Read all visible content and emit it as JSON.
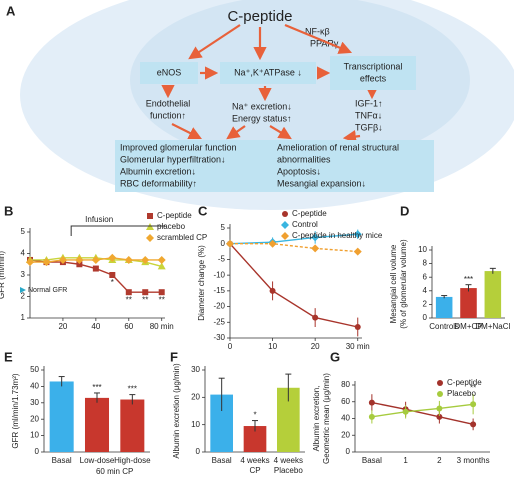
{
  "figure_a": {
    "label": "A",
    "hub": "C-peptide",
    "side_labels": [
      "NF-κβ",
      "PPARγ"
    ],
    "nodes": [
      {
        "label": [
          "eNOS"
        ]
      },
      {
        "label": [
          "Na⁺,K⁺ATPase ↓"
        ]
      },
      {
        "label": [
          "Transcriptional",
          "effects"
        ]
      }
    ],
    "effects": [
      [
        "Endothelial",
        "function↑"
      ],
      [
        "Na⁺ excretion↓",
        "Energy status↑"
      ],
      [
        "IGF-1↑",
        "TNFα↓",
        "TGFβ↓"
      ]
    ],
    "outcomes": [
      [
        "Improved glomerular function",
        "Glomerular hyperfiltration↓",
        "Albumin excretion↓",
        "RBC deformability↑"
      ],
      [
        "Amelioration of renal structural",
        "abnormalities",
        "Apoptosis↓",
        "Mesangial expansion↓"
      ]
    ]
  },
  "chart_data": [
    {
      "type": "line",
      "panel": "B",
      "ylabel": [
        "GFR (ml/min)"
      ],
      "x": [
        0,
        10,
        20,
        30,
        40,
        50,
        60,
        70,
        80
      ],
      "xlim": [
        0,
        82
      ],
      "xticks": [
        20,
        40,
        60,
        {
          "value": 80,
          "label": "80 min"
        }
      ],
      "ylim": [
        1,
        5
      ],
      "yticks": [
        1,
        2,
        3,
        4,
        5
      ],
      "series": [
        {
          "name": "C-peptide",
          "color": "#b03a2e",
          "marker": "square",
          "values": [
            3.7,
            3.6,
            3.6,
            3.5,
            3.3,
            3.0,
            2.2,
            2.2,
            2.2
          ]
        },
        {
          "name": "placebo",
          "color": "#c9d43a",
          "marker": "triangle",
          "values": [
            3.7,
            3.7,
            3.8,
            3.8,
            3.8,
            3.7,
            3.7,
            3.6,
            3.4
          ]
        },
        {
          "name": "scrambled CP",
          "color": "#f0a830",
          "marker": "diamond",
          "values": [
            3.6,
            3.6,
            3.7,
            3.7,
            3.7,
            3.8,
            3.7,
            3.7,
            3.7
          ]
        }
      ],
      "sig": [
        null,
        null,
        null,
        null,
        null,
        "*",
        "**",
        "**",
        "**"
      ],
      "infusion": {
        "label": "Infusion",
        "start": 25
      },
      "normal": {
        "label": "Normal GFR",
        "value": 2.3
      }
    },
    {
      "type": "line",
      "panel": "C",
      "ylabel": [
        "Diameter change (%)"
      ],
      "x": [
        0,
        10,
        20,
        30
      ],
      "xlim": [
        0,
        31
      ],
      "xticks": [
        0,
        10,
        20,
        {
          "value": 30,
          "label": "30 min"
        }
      ],
      "ylim": [
        -30,
        5
      ],
      "yticks": [
        -30,
        -25,
        -20,
        -15,
        -10,
        -5,
        0,
        5
      ],
      "series": [
        {
          "name": "C-peptide",
          "color": "#a8342b",
          "marker": "circle",
          "values": [
            0,
            -15,
            -23.5,
            -26.5
          ],
          "errors": [
            0,
            3,
            3,
            3
          ]
        },
        {
          "name": "Control",
          "color": "#3ab5e0",
          "marker": "diamond",
          "values": [
            0,
            0.5,
            2,
            3
          ],
          "errors": [
            0,
            1.5,
            2,
            1.5
          ]
        },
        {
          "name": "C-peptide in healthy mice",
          "color": "#f0a030",
          "marker": "diamond",
          "dashed": true,
          "values": [
            0,
            0,
            -1.5,
            -2.5
          ]
        }
      ]
    },
    {
      "type": "bar",
      "panel": "D",
      "ylabel": [
        "Mesangial cell volume",
        "(% of glomerular volume)"
      ],
      "categories": [
        [
          "Controls"
        ],
        [
          "DM+CP"
        ],
        [
          "DM+NaCl"
        ]
      ],
      "values": [
        3.1,
        4.4,
        6.9
      ],
      "errors": [
        0.2,
        0.5,
        0.4
      ],
      "colors": [
        "#3bb0ea",
        "#c8372d",
        "#b5cf3a"
      ],
      "ylim": [
        0,
        10
      ],
      "yticks": [
        0,
        2,
        4,
        6,
        8,
        10
      ],
      "sig": [
        null,
        "***",
        null
      ]
    },
    {
      "type": "bar",
      "panel": "E",
      "ylabel": [
        "GFR (ml/min/1.73m²)"
      ],
      "categories": [
        [
          "Basal"
        ],
        [
          "Low-dose"
        ],
        [
          "High-dose"
        ]
      ],
      "group_label": "60 min CP",
      "values": [
        43,
        33,
        32
      ],
      "errors": [
        3,
        3,
        3
      ],
      "colors": [
        "#3bb0ea",
        "#c8372d",
        "#c8372d"
      ],
      "ylim": [
        0,
        50
      ],
      "yticks": [
        0,
        10,
        20,
        30,
        40,
        50
      ],
      "sig": [
        null,
        "***",
        "***"
      ]
    },
    {
      "type": "bar",
      "panel": "F",
      "ylabel": [
        "Albumin excretion (μg/min)"
      ],
      "categories": [
        [
          "Basal"
        ],
        [
          "4 weeks",
          "CP"
        ],
        [
          "4 weeks",
          "Placebo"
        ]
      ],
      "values": [
        21,
        9.5,
        23.5
      ],
      "errors": [
        6,
        2,
        5
      ],
      "colors": [
        "#3bb0ea",
        "#c8372d",
        "#b5cf3a"
      ],
      "ylim": [
        0,
        30
      ],
      "yticks": [
        0,
        10,
        20,
        30
      ],
      "sig": [
        null,
        "*",
        null
      ]
    },
    {
      "type": "line",
      "panel": "G",
      "ylabel": [
        "Albumin excretion,",
        "Geometric mean (μg/min)"
      ],
      "categories": [
        "Basal",
        "1",
        "2",
        "3 months"
      ],
      "ylim": [
        0,
        80
      ],
      "yticks": [
        0,
        20,
        40,
        60,
        80
      ],
      "series": [
        {
          "name": "C-peptide",
          "color": "#a3322b",
          "marker": "circle",
          "values": [
            59,
            51,
            42,
            33
          ],
          "errors": [
            10,
            9,
            8,
            7
          ]
        },
        {
          "name": "Placebo",
          "color": "#a6cb3e",
          "marker": "circle",
          "values": [
            42,
            48,
            52,
            57
          ],
          "errors": [
            8,
            8,
            9,
            12
          ]
        }
      ],
      "sig": [
        null,
        null,
        null,
        "**"
      ]
    }
  ]
}
